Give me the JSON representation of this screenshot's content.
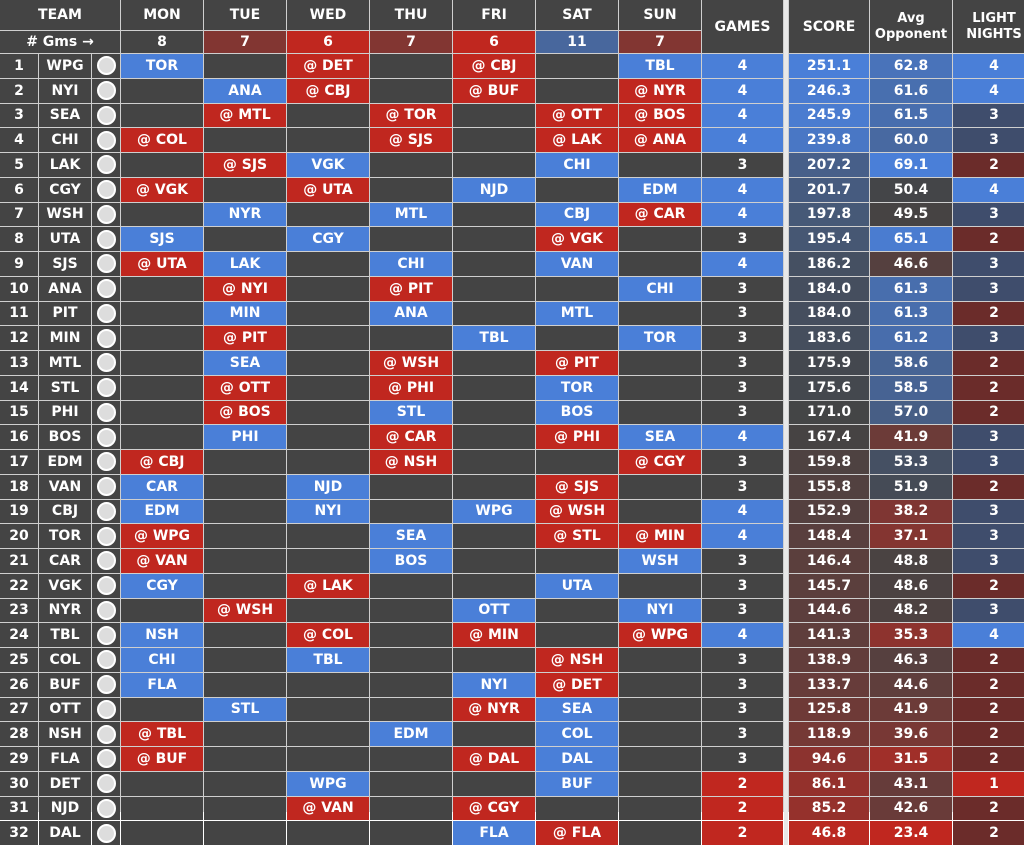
{
  "header": {
    "team": "TEAM",
    "gms_label": "# Gms →",
    "days": [
      "MON",
      "TUE",
      "WED",
      "THU",
      "FRI",
      "SAT",
      "SUN"
    ],
    "day_counts": [
      8,
      7,
      6,
      7,
      6,
      11,
      7
    ],
    "games": "GAMES",
    "score": "SCORE",
    "avg_opp": "Avg\nOpponent",
    "light": "LIGHT\nNIGHTS"
  },
  "colors": {
    "blue": "#4a7fd8",
    "red": "#c0271f",
    "gray": "#444444"
  },
  "rows": [
    [
      "1",
      "WPG",
      "TOR",
      "",
      "@ DET",
      "",
      "@ CBJ",
      "",
      "TBL",
      "4",
      "251.1",
      "62.8",
      "4"
    ],
    [
      "2",
      "NYI",
      "",
      "ANA",
      "@ CBJ",
      "",
      "@ BUF",
      "",
      "@ NYR",
      "4",
      "246.3",
      "61.6",
      "4"
    ],
    [
      "3",
      "SEA",
      "",
      "@ MTL",
      "",
      "@ TOR",
      "",
      "@ OTT",
      "@ BOS",
      "4",
      "245.9",
      "61.5",
      "3"
    ],
    [
      "4",
      "CHI",
      "@ COL",
      "",
      "",
      "@ SJS",
      "",
      "@ LAK",
      "@ ANA",
      "4",
      "239.8",
      "60.0",
      "3"
    ],
    [
      "5",
      "LAK",
      "",
      "@ SJS",
      "VGK",
      "",
      "",
      "CHI",
      "",
      "3",
      "207.2",
      "69.1",
      "2"
    ],
    [
      "6",
      "CGY",
      "@ VGK",
      "",
      "@ UTA",
      "",
      "NJD",
      "",
      "EDM",
      "4",
      "201.7",
      "50.4",
      "4"
    ],
    [
      "7",
      "WSH",
      "",
      "NYR",
      "",
      "MTL",
      "",
      "CBJ",
      "@ CAR",
      "4",
      "197.8",
      "49.5",
      "3"
    ],
    [
      "8",
      "UTA",
      "SJS",
      "",
      "CGY",
      "",
      "",
      "@ VGK",
      "",
      "3",
      "195.4",
      "65.1",
      "2"
    ],
    [
      "9",
      "SJS",
      "@ UTA",
      "LAK",
      "",
      "CHI",
      "",
      "VAN",
      "",
      "4",
      "186.2",
      "46.6",
      "3"
    ],
    [
      "10",
      "ANA",
      "",
      "@ NYI",
      "",
      "@ PIT",
      "",
      "",
      "CHI",
      "3",
      "184.0",
      "61.3",
      "3"
    ],
    [
      "11",
      "PIT",
      "",
      "MIN",
      "",
      "ANA",
      "",
      "MTL",
      "",
      "3",
      "184.0",
      "61.3",
      "2"
    ],
    [
      "12",
      "MIN",
      "",
      "@ PIT",
      "",
      "",
      "TBL",
      "",
      "TOR",
      "3",
      "183.6",
      "61.2",
      "3"
    ],
    [
      "13",
      "MTL",
      "",
      "SEA",
      "",
      "@ WSH",
      "",
      "@ PIT",
      "",
      "3",
      "175.9",
      "58.6",
      "2"
    ],
    [
      "14",
      "STL",
      "",
      "@ OTT",
      "",
      "@ PHI",
      "",
      "TOR",
      "",
      "3",
      "175.6",
      "58.5",
      "2"
    ],
    [
      "15",
      "PHI",
      "",
      "@ BOS",
      "",
      "STL",
      "",
      "BOS",
      "",
      "3",
      "171.0",
      "57.0",
      "2"
    ],
    [
      "16",
      "BOS",
      "",
      "PHI",
      "",
      "@ CAR",
      "",
      "@ PHI",
      "SEA",
      "4",
      "167.4",
      "41.9",
      "3"
    ],
    [
      "17",
      "EDM",
      "@ CBJ",
      "",
      "",
      "@ NSH",
      "",
      "",
      "@ CGY",
      "3",
      "159.8",
      "53.3",
      "3"
    ],
    [
      "18",
      "VAN",
      "CAR",
      "",
      "NJD",
      "",
      "",
      "@ SJS",
      "",
      "3",
      "155.8",
      "51.9",
      "2"
    ],
    [
      "19",
      "CBJ",
      "EDM",
      "",
      "NYI",
      "",
      "WPG",
      "@ WSH",
      "",
      "4",
      "152.9",
      "38.2",
      "3"
    ],
    [
      "20",
      "TOR",
      "@ WPG",
      "",
      "",
      "SEA",
      "",
      "@ STL",
      "@ MIN",
      "4",
      "148.4",
      "37.1",
      "3"
    ],
    [
      "21",
      "CAR",
      "@ VAN",
      "",
      "",
      "BOS",
      "",
      "",
      "WSH",
      "3",
      "146.4",
      "48.8",
      "3"
    ],
    [
      "22",
      "VGK",
      "CGY",
      "",
      "@ LAK",
      "",
      "",
      "UTA",
      "",
      "3",
      "145.7",
      "48.6",
      "2"
    ],
    [
      "23",
      "NYR",
      "",
      "@ WSH",
      "",
      "",
      "OTT",
      "",
      "NYI",
      "3",
      "144.6",
      "48.2",
      "3"
    ],
    [
      "24",
      "TBL",
      "NSH",
      "",
      "@ COL",
      "",
      "@ MIN",
      "",
      "@ WPG",
      "4",
      "141.3",
      "35.3",
      "4"
    ],
    [
      "25",
      "COL",
      "CHI",
      "",
      "TBL",
      "",
      "",
      "@ NSH",
      "",
      "3",
      "138.9",
      "46.3",
      "2"
    ],
    [
      "26",
      "BUF",
      "FLA",
      "",
      "",
      "",
      "NYI",
      "@ DET",
      "",
      "3",
      "133.7",
      "44.6",
      "2"
    ],
    [
      "27",
      "OTT",
      "",
      "STL",
      "",
      "",
      "@ NYR",
      "SEA",
      "",
      "3",
      "125.8",
      "41.9",
      "2"
    ],
    [
      "28",
      "NSH",
      "@ TBL",
      "",
      "",
      "EDM",
      "",
      "COL",
      "",
      "3",
      "118.9",
      "39.6",
      "2"
    ],
    [
      "29",
      "FLA",
      "@ BUF",
      "",
      "",
      "",
      "@ DAL",
      "DAL",
      "",
      "3",
      "94.6",
      "31.5",
      "2"
    ],
    [
      "30",
      "DET",
      "",
      "",
      "WPG",
      "",
      "",
      "BUF",
      "",
      "2",
      "86.1",
      "43.1",
      "1"
    ],
    [
      "31",
      "NJD",
      "",
      "",
      "@ VAN",
      "",
      "@ CGY",
      "",
      "",
      "2",
      "85.2",
      "42.6",
      "2"
    ],
    [
      "32",
      "DAL",
      "",
      "",
      "",
      "",
      "FLA",
      "@ FLA",
      "",
      "2",
      "46.8",
      "23.4",
      "2"
    ]
  ]
}
